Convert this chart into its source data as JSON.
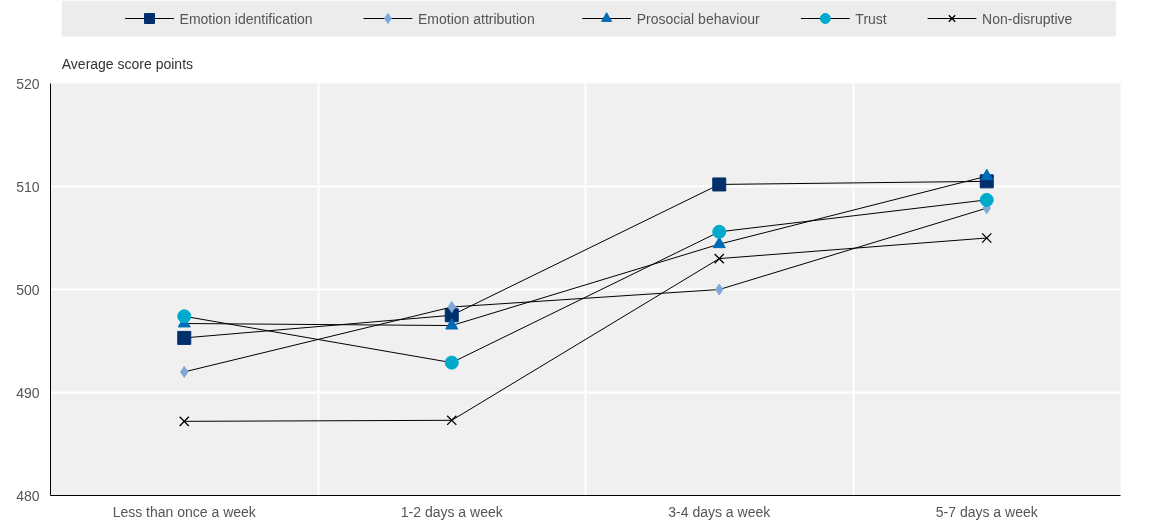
{
  "chart_data": {
    "type": "line",
    "ylabel": "Average score points",
    "categories": [
      "Less than once a week",
      "1-2 days a week",
      "3-4 days a week",
      "5-7 days a week"
    ],
    "series": [
      {
        "name": "Emotion identification",
        "color": "#002f6c",
        "marker": "square",
        "values": [
          495.3,
          497.5,
          510.2,
          510.5
        ]
      },
      {
        "name": "Emotion attribution",
        "color": "#7fa8d9",
        "marker": "diamond",
        "values": [
          492.0,
          498.3,
          500.0,
          507.9
        ]
      },
      {
        "name": "Prosocial behaviour",
        "color": "#006bb6",
        "marker": "triangle",
        "values": [
          496.7,
          496.5,
          504.4,
          511.0
        ]
      },
      {
        "name": "Trust",
        "color": "#00aacc",
        "marker": "circle",
        "values": [
          497.4,
          492.9,
          505.6,
          508.7
        ]
      },
      {
        "name": "Non-disruptive",
        "color": "#000000",
        "marker": "cross",
        "values": [
          487.2,
          487.3,
          503.0,
          505.0
        ]
      }
    ],
    "ylim": [
      480,
      520
    ],
    "yticks": [
      480,
      490,
      500,
      510,
      520
    ],
    "grid": true,
    "legend": "top"
  }
}
